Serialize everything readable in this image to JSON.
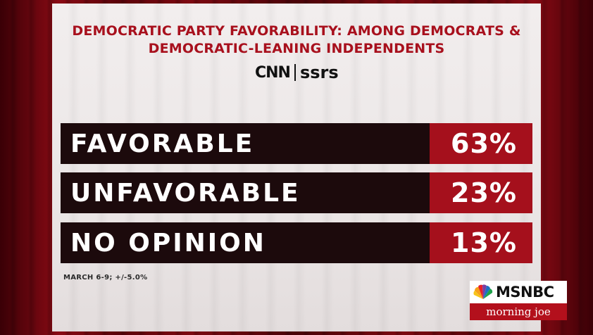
{
  "chart_data": {
    "type": "bar",
    "title": "DEMOCRATIC PARTY FAVORABILITY: AMONG DEMOCRATS & DEMOCRATIC-LEANING INDEPENDENTS",
    "title_lines": [
      "DEMOCRATIC PARTY FAVORABILITY: AMONG DEMOCRATS &",
      "DEMOCRATIC-LEANING INDEPENDENTS"
    ],
    "categories": [
      "FAVORABLE",
      "UNFAVORABLE",
      "NO OPINION"
    ],
    "values": [
      63,
      23,
      13
    ],
    "value_labels": [
      "63%",
      "23%",
      "13%"
    ],
    "label_color": "#1c0a0c",
    "value_color": "#a5101c",
    "title_color": "#a8101d"
  },
  "source": {
    "logo_left": "CNN",
    "logo_right": "ssrs"
  },
  "footnote": "MARCH 6-9; +/-5.0%",
  "network": {
    "name": "MSNBC",
    "show": "morning joe",
    "icon": "peacock-icon"
  }
}
